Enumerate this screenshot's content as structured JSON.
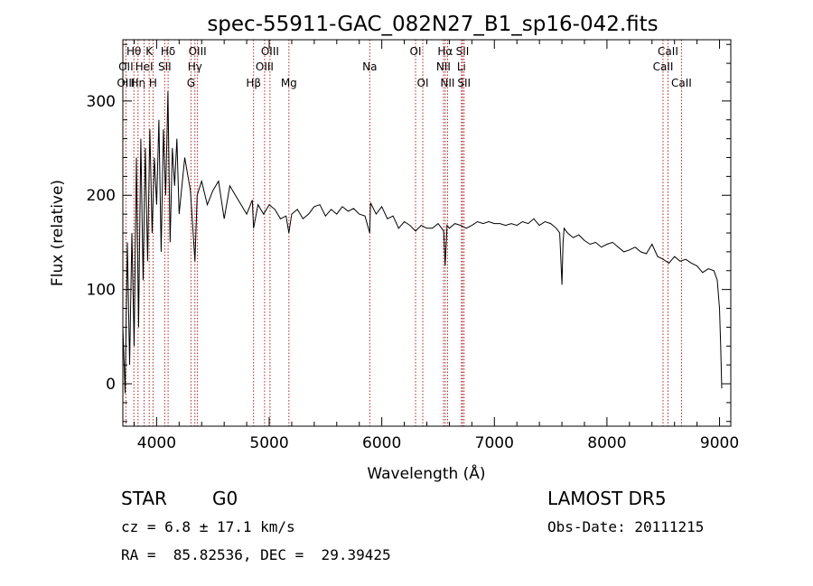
{
  "chart_data": {
    "type": "line",
    "title": "spec-55911-GAC_082N27_B1_sp16-042.fits",
    "xlabel": "Wavelength (Å)",
    "ylabel": "Flux (relative)",
    "xlim": [
      3700,
      9100
    ],
    "ylim": [
      -45,
      365
    ],
    "xticks": [
      4000,
      5000,
      6000,
      7000,
      8000,
      9000
    ],
    "yticks": [
      0,
      100,
      200,
      300
    ],
    "grid": false,
    "line_color": "#000000",
    "marker_color": "#b22222",
    "series": [
      {
        "x": [
          3700,
          3720,
          3740,
          3760,
          3780,
          3800,
          3820,
          3840,
          3860,
          3880,
          3900,
          3920,
          3940,
          3960,
          3980,
          4000,
          4020,
          4040,
          4060,
          4080,
          4100,
          4120,
          4140,
          4160,
          4180,
          4200,
          4250,
          4300,
          4340,
          4360,
          4400,
          4450,
          4500,
          4550,
          4600,
          4650,
          4700,
          4750,
          4800,
          4850,
          4861,
          4900,
          4950,
          5000,
          5050,
          5100,
          5150,
          5175,
          5200,
          5250,
          5300,
          5350,
          5400,
          5450,
          5500,
          5550,
          5600,
          5650,
          5700,
          5750,
          5800,
          5850,
          5893,
          5900,
          5950,
          6000,
          6050,
          6100,
          6150,
          6200,
          6250,
          6300,
          6350,
          6400,
          6450,
          6500,
          6550,
          6563,
          6580,
          6600,
          6650,
          6700,
          6750,
          6800,
          6850,
          6900,
          6950,
          7000,
          7050,
          7100,
          7150,
          7200,
          7250,
          7300,
          7350,
          7400,
          7450,
          7500,
          7550,
          7580,
          7600,
          7610,
          7620,
          7650,
          7700,
          7750,
          7800,
          7850,
          7900,
          7950,
          8000,
          8050,
          8100,
          8150,
          8200,
          8250,
          8300,
          8350,
          8400,
          8450,
          8500,
          8550,
          8600,
          8650,
          8700,
          8750,
          8800,
          8850,
          8900,
          8950,
          8980,
          9000,
          9010,
          9020
        ],
        "y": [
          60,
          -10,
          150,
          20,
          160,
          40,
          240,
          60,
          260,
          110,
          250,
          130,
          270,
          160,
          240,
          190,
          280,
          140,
          270,
          200,
          310,
          150,
          250,
          210,
          260,
          180,
          240,
          205,
          130,
          200,
          215,
          190,
          205,
          215,
          175,
          210,
          200,
          190,
          180,
          195,
          165,
          190,
          180,
          190,
          185,
          175,
          178,
          160,
          180,
          185,
          175,
          180,
          188,
          190,
          178,
          185,
          180,
          188,
          183,
          186,
          180,
          178,
          160,
          192,
          180,
          188,
          175,
          178,
          165,
          172,
          168,
          162,
          168,
          165,
          165,
          170,
          162,
          125,
          168,
          165,
          170,
          168,
          165,
          168,
          172,
          170,
          172,
          170,
          170,
          168,
          170,
          168,
          172,
          170,
          175,
          168,
          172,
          170,
          165,
          160,
          105,
          150,
          165,
          160,
          155,
          158,
          152,
          148,
          150,
          145,
          148,
          150,
          145,
          140,
          142,
          145,
          140,
          138,
          148,
          135,
          132,
          128,
          135,
          130,
          132,
          128,
          125,
          118,
          122,
          120,
          110,
          80,
          40,
          -5
        ]
      }
    ],
    "line_markers": [
      {
        "label": "Hθ",
        "wavelength": 3798,
        "row": 1
      },
      {
        "label": "OII",
        "wavelength": 3727,
        "row": 2
      },
      {
        "label": "OIII",
        "wavelength": 3727,
        "row": 3
      },
      {
        "label": "Hη",
        "wavelength": 3835,
        "row": 3
      },
      {
        "label": "HeI",
        "wavelength": 3889,
        "row": 2
      },
      {
        "label": "K",
        "wavelength": 3934,
        "row": 1
      },
      {
        "label": "H",
        "wavelength": 3968,
        "row": 3
      },
      {
        "label": "SII",
        "wavelength": 4072,
        "row": 2
      },
      {
        "label": "Hδ",
        "wavelength": 4102,
        "row": 1
      },
      {
        "label": "OIII",
        "wavelength": 4363,
        "row": 1
      },
      {
        "label": "Hγ",
        "wavelength": 4340,
        "row": 2
      },
      {
        "label": "G",
        "wavelength": 4305,
        "row": 3
      },
      {
        "label": "Hβ",
        "wavelength": 4861,
        "row": 3
      },
      {
        "label": "OIII",
        "wavelength": 5007,
        "row": 1
      },
      {
        "label": "OIII",
        "wavelength": 4959,
        "row": 2
      },
      {
        "label": "Mg",
        "wavelength": 5175,
        "row": 3
      },
      {
        "label": "Na",
        "wavelength": 5893,
        "row": 2
      },
      {
        "label": "OI",
        "wavelength": 6300,
        "row": 1
      },
      {
        "label": "OI",
        "wavelength": 6364,
        "row": 3
      },
      {
        "label": "Hα",
        "wavelength": 6563,
        "row": 1
      },
      {
        "label": "NII",
        "wavelength": 6548,
        "row": 2
      },
      {
        "label": "NII",
        "wavelength": 6584,
        "row": 3
      },
      {
        "label": "SII",
        "wavelength": 6717,
        "row": 1
      },
      {
        "label": "Li",
        "wavelength": 6708,
        "row": 2
      },
      {
        "label": "SII",
        "wavelength": 6731,
        "row": 3
      },
      {
        "label": "CaII",
        "wavelength": 8542,
        "row": 1
      },
      {
        "label": "CaII",
        "wavelength": 8498,
        "row": 2
      },
      {
        "label": "CaII",
        "wavelength": 8662,
        "row": 3
      }
    ]
  },
  "info": {
    "object_class": "STAR",
    "subclass": "G0",
    "survey": "LAMOST DR5",
    "redshift": "cz = 6.8 ± 17.1 km/s",
    "obs_date": "Obs-Date: 20111215",
    "coords": "RA =  85.82536, DEC =  29.39425"
  }
}
